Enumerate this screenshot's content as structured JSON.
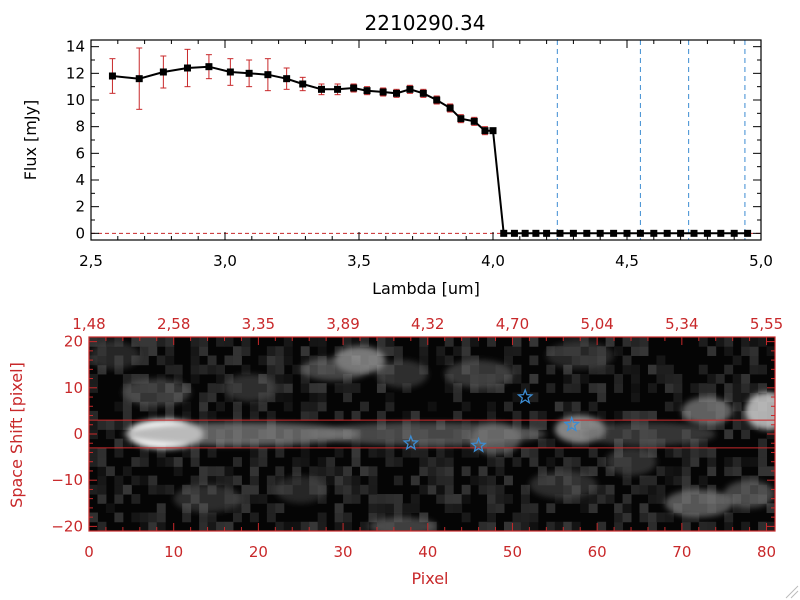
{
  "chart_data": [
    {
      "type": "line",
      "title": "2210290.34",
      "xlabel": "Lambda [um]",
      "ylabel": "Flux [mJy]",
      "xlim": [
        2.5,
        5.0
      ],
      "ylim": [
        -0.5,
        14.5
      ],
      "xticks": [
        2.5,
        3.0,
        3.5,
        4.0,
        4.5,
        5.0
      ],
      "xtick_labels": [
        "2,5",
        "3,0",
        "3,5",
        "4,0",
        "4,5",
        "5,0"
      ],
      "yticks": [
        0,
        2,
        4,
        6,
        8,
        10,
        12,
        14
      ],
      "ytick_labels": [
        "0",
        "2",
        "4",
        "6",
        "8",
        "10",
        "12",
        "14"
      ],
      "series": [
        {
          "color": "#000000",
          "marker": "square",
          "errorbar_color": "#c8282a",
          "x": [
            2.58,
            2.68,
            2.77,
            2.86,
            2.94,
            3.02,
            3.09,
            3.16,
            3.23,
            3.29,
            3.36,
            3.42,
            3.48,
            3.53,
            3.59,
            3.64,
            3.69,
            3.74,
            3.79,
            3.84,
            3.88,
            3.93,
            3.97,
            4.0,
            4.04,
            4.08,
            4.12,
            4.16,
            4.2,
            4.25,
            4.3,
            4.35,
            4.4,
            4.45,
            4.5,
            4.55,
            4.6,
            4.65,
            4.7,
            4.75,
            4.8,
            4.85,
            4.9,
            4.95
          ],
          "y": [
            11.8,
            11.6,
            12.1,
            12.4,
            12.5,
            12.1,
            12.0,
            11.9,
            11.6,
            11.2,
            10.8,
            10.8,
            10.9,
            10.7,
            10.6,
            10.5,
            10.8,
            10.5,
            10.0,
            9.4,
            8.6,
            8.4,
            7.7,
            7.7,
            0.0,
            0.0,
            0.0,
            0.0,
            0.0,
            0.0,
            0.0,
            0.0,
            0.0,
            0.0,
            0.0,
            0.0,
            0.0,
            0.0,
            0.0,
            0.0,
            0.0,
            0.0,
            0.0,
            0.0
          ],
          "err": [
            1.3,
            2.3,
            1.2,
            1.4,
            0.9,
            1.0,
            1.0,
            1.2,
            0.8,
            0.5,
            0.4,
            0.4,
            0.3,
            0.3,
            0.3,
            0.3,
            0.3,
            0.3,
            0.3,
            0.3,
            0.3,
            0.3,
            0.3,
            0.0,
            0.0,
            0.0,
            0.0,
            0.0,
            0.0,
            0.0,
            0.0,
            0.0,
            0.0,
            0.0,
            0.0,
            0.0,
            0.0,
            0.0,
            0.0,
            0.0,
            0.0,
            0.0,
            0.0,
            0.0
          ]
        }
      ],
      "vlines": {
        "x": [
          4.24,
          4.55,
          4.73,
          4.94
        ],
        "color": "#3c8cd2"
      },
      "hline": {
        "y": 0,
        "color": "#c8282a"
      }
    },
    {
      "type": "heatmap",
      "xlabel": "Pixel",
      "ylabel": "Space Shift [pixel]",
      "xlim": [
        0,
        81
      ],
      "ylim": [
        -21,
        21
      ],
      "xticks": [
        0,
        10,
        20,
        30,
        40,
        50,
        60,
        70,
        80
      ],
      "xtick_labels": [
        "0",
        "10",
        "20",
        "30",
        "40",
        "50",
        "60",
        "70",
        "80"
      ],
      "yticks": [
        -20,
        -10,
        0,
        10,
        20
      ],
      "ytick_labels": [
        "−20",
        "−10",
        "0",
        "10",
        "20"
      ],
      "top_axis": {
        "ticks": [
          0,
          10,
          20,
          30,
          40,
          50,
          60,
          70,
          80
        ],
        "labels": [
          "1,48",
          "2,58",
          "3,35",
          "3,89",
          "4,32",
          "4,70",
          "5,04",
          "5,34",
          "5,55"
        ]
      },
      "axis_color": "#c8282a",
      "aperture_lines": {
        "y": [
          3,
          -3
        ],
        "color": "#c8282a"
      },
      "markers": {
        "shape": "star",
        "color": "#3c8cd2",
        "points": [
          [
            38,
            -2
          ],
          [
            46,
            -2.5
          ],
          [
            51.5,
            8
          ],
          [
            57,
            2
          ]
        ]
      },
      "blobs": [
        {
          "x": 9,
          "y": 0,
          "sx": 4.5,
          "sy": 3.2,
          "a": 1.0
        },
        {
          "x": 18,
          "y": 0,
          "sx": 14,
          "sy": 2.5,
          "a": 0.45
        },
        {
          "x": 40,
          "y": 0,
          "sx": 14,
          "sy": 2.5,
          "a": 0.32
        },
        {
          "x": 48,
          "y": -1,
          "sx": 3,
          "sy": 3.5,
          "a": 0.35
        },
        {
          "x": 58,
          "y": 1,
          "sx": 3,
          "sy": 3,
          "a": 0.6
        },
        {
          "x": 66,
          "y": 0,
          "sx": 8,
          "sy": 2.5,
          "a": 0.22
        },
        {
          "x": 80,
          "y": 5,
          "sx": 2.5,
          "sy": 4,
          "a": 0.75
        },
        {
          "x": 73,
          "y": 5,
          "sx": 3,
          "sy": 3,
          "a": 0.45
        },
        {
          "x": 32,
          "y": 16,
          "sx": 3,
          "sy": 3,
          "a": 0.55
        },
        {
          "x": 29,
          "y": 14,
          "sx": 4,
          "sy": 2.5,
          "a": 0.3
        },
        {
          "x": 46,
          "y": 13,
          "sx": 4,
          "sy": 3,
          "a": 0.22
        },
        {
          "x": 37,
          "y": 13,
          "sx": 3,
          "sy": 3,
          "a": 0.18
        },
        {
          "x": 8,
          "y": 9,
          "sx": 4,
          "sy": 3,
          "a": 0.22
        },
        {
          "x": 19,
          "y": 10,
          "sx": 3,
          "sy": 3,
          "a": 0.18
        },
        {
          "x": 72,
          "y": -15,
          "sx": 4,
          "sy": 3,
          "a": 0.4
        },
        {
          "x": 78,
          "y": -13,
          "sx": 3,
          "sy": 3,
          "a": 0.3
        },
        {
          "x": 37,
          "y": -20,
          "sx": 4,
          "sy": 2,
          "a": 0.28
        },
        {
          "x": 14,
          "y": -14,
          "sx": 4,
          "sy": 3,
          "a": 0.15
        },
        {
          "x": 56,
          "y": -11,
          "sx": 4,
          "sy": 3,
          "a": 0.15
        },
        {
          "x": 64,
          "y": -6,
          "sx": 3,
          "sy": 3,
          "a": 0.18
        },
        {
          "x": 3,
          "y": 17,
          "sx": 3,
          "sy": 3,
          "a": 0.12
        },
        {
          "x": 58,
          "y": 17,
          "sx": 4,
          "sy": 3,
          "a": 0.12
        },
        {
          "x": 25,
          "y": -12,
          "sx": 3,
          "sy": 3,
          "a": 0.12
        }
      ]
    }
  ]
}
